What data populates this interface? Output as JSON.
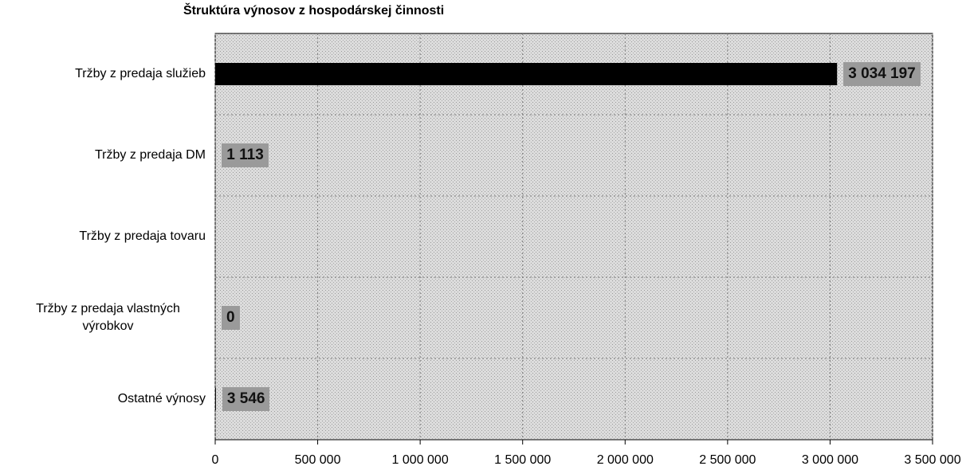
{
  "chart_data": {
    "type": "barh",
    "title": "Štruktúra výnosov z hospodárskej činnosti",
    "categories": [
      "Tržby z predaja služieb",
      "Tržby z predaja DM",
      "Tržby z predaja tovaru",
      "Tržby z predaja vlastných výrobkov",
      "Ostatné výnosy"
    ],
    "values": [
      3034197,
      1113,
      null,
      0,
      3546
    ],
    "value_labels": [
      "3 034 197",
      "1 113",
      null,
      "0",
      "3 546"
    ],
    "color": "#000000",
    "xlim": [
      0,
      3500000
    ],
    "xticks": [
      0,
      {
        "value": 500000,
        "label": "500 000"
      },
      {
        "value": 1000000,
        "label": "1 000 000"
      },
      {
        "value": 1500000,
        "label": "1 500 000"
      },
      {
        "value": 2000000,
        "label": "2 000 000"
      },
      {
        "value": 2500000,
        "label": "2 500 000"
      },
      {
        "value": 3000000,
        "label": "3 000 000"
      },
      {
        "value": 3500000,
        "label": "3 500 000"
      }
    ],
    "grid": true
  }
}
